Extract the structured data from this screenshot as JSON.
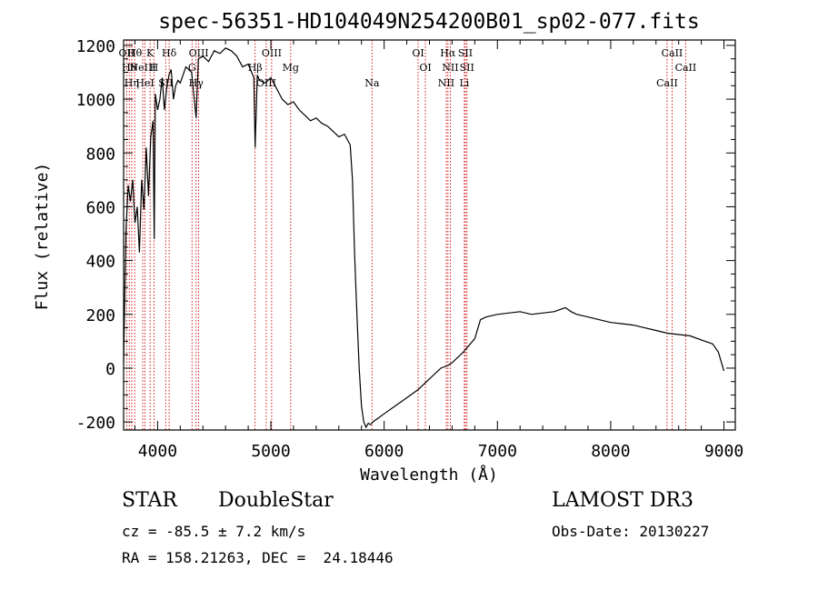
{
  "chart_data": {
    "type": "line",
    "title": "spec-56351-HD104049N254200B01_sp02-077.fits",
    "xlabel": "Wavelength (Å)",
    "ylabel": "Flux (relative)",
    "xlim": [
      3700,
      9100
    ],
    "ylim": [
      -230,
      1220
    ],
    "xticks": [
      "4000",
      "5000",
      "6000",
      "7000",
      "8000",
      "9000"
    ],
    "yticks": [
      "-200",
      "0",
      "200",
      "400",
      "600",
      "800",
      "1000",
      "1200"
    ],
    "grid": false,
    "series": [
      {
        "x": [
          3700,
          3720,
          3740,
          3760,
          3780,
          3800,
          3820,
          3840,
          3860,
          3880,
          3900,
          3920,
          3940,
          3960,
          3970,
          3980,
          4000,
          4020,
          4040,
          4060,
          4080,
          4100,
          4120,
          4140,
          4160,
          4180,
          4200,
          4250,
          4300,
          4340,
          4360,
          4400,
          4450,
          4500,
          4550,
          4600,
          4650,
          4700,
          4750,
          4800,
          4850,
          4861,
          4880,
          4900,
          4950,
          5000,
          5050,
          5100,
          5150,
          5200,
          5250,
          5300,
          5350,
          5400,
          5450,
          5500,
          5550,
          5600,
          5650,
          5700,
          5720,
          5740,
          5760,
          5780,
          5800,
          5820,
          5840,
          5860,
          5880,
          5900,
          5950,
          6000,
          6100,
          6200,
          6300,
          6400,
          6500,
          6563,
          6600,
          6700,
          6800,
          6850,
          6900,
          7000,
          7100,
          7200,
          7300,
          7400,
          7500,
          7600,
          7650,
          7700,
          7800,
          7900,
          8000,
          8100,
          8200,
          8300,
          8400,
          8500,
          8600,
          8700,
          8800,
          8900,
          8950,
          9000
        ],
        "values": [
          20,
          500,
          680,
          620,
          700,
          540,
          600,
          430,
          700,
          590,
          820,
          640,
          860,
          920,
          480,
          1020,
          960,
          1000,
          1080,
          960,
          1040,
          1090,
          1110,
          1000,
          1050,
          1070,
          1060,
          1120,
          1100,
          930,
          1150,
          1160,
          1140,
          1180,
          1170,
          1190,
          1180,
          1160,
          1120,
          1130,
          1080,
          820,
          1090,
          1070,
          1060,
          1080,
          1040,
          1000,
          980,
          990,
          960,
          940,
          920,
          930,
          910,
          900,
          880,
          860,
          870,
          830,
          700,
          420,
          200,
          0,
          -140,
          -200,
          -220,
          -205,
          -210,
          -200,
          -185,
          -170,
          -140,
          -110,
          -80,
          -40,
          0,
          10,
          20,
          60,
          110,
          180,
          190,
          200,
          205,
          210,
          200,
          205,
          210,
          225,
          210,
          200,
          190,
          180,
          170,
          165,
          160,
          150,
          140,
          130,
          125,
          120,
          105,
          90,
          60,
          -10
        ]
      }
    ],
    "lines": [
      {
        "x": 3727,
        "label": "OII"
      },
      {
        "x": 3750,
        "label": "Hθ"
      },
      {
        "x": 3771,
        "label": "Hη"
      },
      {
        "x": 3798,
        "label": "Hθ"
      },
      {
        "x": 3869,
        "label": "NeIII"
      },
      {
        "x": 3889,
        "label": "HeI"
      },
      {
        "x": 3934,
        "label": "K"
      },
      {
        "x": 3968,
        "label": "H"
      },
      {
        "x": 4072,
        "label": "SII"
      },
      {
        "x": 4102,
        "label": "Hδ"
      },
      {
        "x": 4304,
        "label": "G"
      },
      {
        "x": 4340,
        "label": "Hγ"
      },
      {
        "x": 4363,
        "label": "OIII"
      },
      {
        "x": 4861,
        "label": "Hβ"
      },
      {
        "x": 4959,
        "label": "OIII"
      },
      {
        "x": 5007,
        "label": "OIII"
      },
      {
        "x": 5175,
        "label": "Mg"
      },
      {
        "x": 5893,
        "label": "Na"
      },
      {
        "x": 6300,
        "label": "OI"
      },
      {
        "x": 6364,
        "label": "OI"
      },
      {
        "x": 6548,
        "label": "NII"
      },
      {
        "x": 6563,
        "label": "Hα"
      },
      {
        "x": 6584,
        "label": "NII"
      },
      {
        "x": 6708,
        "label": "Li"
      },
      {
        "x": 6717,
        "label": "SII"
      },
      {
        "x": 6731,
        "label": "SII"
      },
      {
        "x": 8498,
        "label": "CaII"
      },
      {
        "x": 8542,
        "label": "CaII"
      },
      {
        "x": 8662,
        "label": "CaII"
      }
    ]
  },
  "info": {
    "class": "STAR",
    "subclass": "DoubleStar",
    "survey": "LAMOST DR3",
    "cz": "cz = -85.5 ± 7.2 km/s",
    "obs_date": "Obs-Date: 20130227",
    "radec": "RA = 158.21263, DEC =  24.18446"
  }
}
